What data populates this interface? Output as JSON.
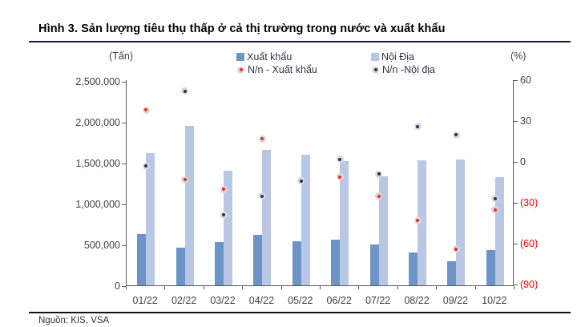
{
  "page": {
    "title": "Hình 3. Sản lượng tiêu thụ thấp ở cả thị trường trong nước và xuất khẩu",
    "source": "Nguồn: KIS, VSA"
  },
  "colors": {
    "export_bar": "#6d94c6",
    "domestic_bar": "#b9c6e4",
    "export_dot": "#e5311f",
    "domestic_dot": "#1f3864",
    "marker_ring": "#d9d9d9",
    "negative_label": "#ff0000",
    "axis_line": "#595959",
    "title_rule": "#1a1a3a"
  },
  "chart_data": {
    "type": "bar",
    "subtype": "dual-axis combo: grouped monthly bars (left axis, tons) with YoY % scatter markers (right axis)",
    "title": "Hình 3. Sản lượng tiêu thụ thấp ở cả thị trường trong nước và xuất khẩu",
    "grid": false,
    "legend_position": "top",
    "categories": [
      "01/22",
      "02/22",
      "03/22",
      "04/22",
      "05/22",
      "06/22",
      "07/22",
      "08/22",
      "09/22",
      "10/22"
    ],
    "series": [
      {
        "name": "Xuất khẩu",
        "kind": "bar",
        "axis": "left",
        "color": "#6d94c6",
        "values": [
          630000,
          460000,
          530000,
          620000,
          540000,
          560000,
          500000,
          400000,
          290000,
          430000
        ]
      },
      {
        "name": "Nội Địa",
        "kind": "bar",
        "axis": "left",
        "color": "#b9c6e4",
        "values": [
          1620000,
          1950000,
          1400000,
          1660000,
          1600000,
          1520000,
          1330000,
          1530000,
          1540000,
          1320000
        ]
      },
      {
        "name": "N/n - Xuất khẩu",
        "kind": "scatter",
        "axis": "right",
        "color": "#e5311f",
        "values": [
          38,
          -13,
          -20,
          17,
          -14,
          -11,
          -25,
          -43,
          -64,
          -35
        ]
      },
      {
        "name": "N/n -Nội địa",
        "kind": "scatter",
        "axis": "right",
        "color": "#1f3864",
        "values": [
          -3,
          52,
          -39,
          -25,
          -14,
          2,
          -9,
          26,
          20,
          -27
        ]
      }
    ],
    "left_axis": {
      "unit": "(Tấn)",
      "min": 0,
      "max": 2500000,
      "ticks": [
        {
          "label": "2,500,000",
          "value": 2500000
        },
        {
          "label": "2,000,000",
          "value": 2000000
        },
        {
          "label": "1,500,000",
          "value": 1500000
        },
        {
          "label": "1,000,000",
          "value": 1000000
        },
        {
          "label": "500,000",
          "value": 500000
        },
        {
          "label": "0",
          "value": 0
        }
      ]
    },
    "right_axis": {
      "unit": "(%)",
      "min": -90,
      "max": 60,
      "ticks": [
        {
          "label": "60",
          "value": 60,
          "negative": false
        },
        {
          "label": "30",
          "value": 30,
          "negative": false
        },
        {
          "label": "0",
          "value": 0,
          "negative": false
        },
        {
          "label": "(30)",
          "value": -30,
          "negative": true
        },
        {
          "label": "(60)",
          "value": -60,
          "negative": true
        },
        {
          "label": "(90)",
          "value": -90,
          "negative": true
        }
      ]
    }
  }
}
